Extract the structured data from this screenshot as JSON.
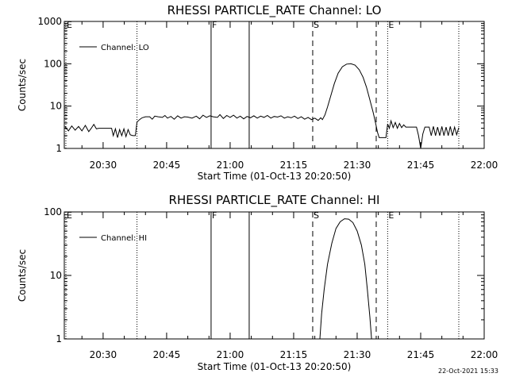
{
  "footer_timestamp": "22-Oct-2021 15:33",
  "chart_data": [
    {
      "type": "line",
      "title": "RHESSI PARTICLE_RATE Channel: LO",
      "xlabel": "Start Time (01-Oct-13 20:20:50)",
      "ylabel": "Counts/sec",
      "x_units": "minutes after 20:00 UT",
      "xlim": [
        20.83,
        120
      ],
      "ylim": [
        1,
        1000
      ],
      "yscale": "log",
      "x_ticks": [
        {
          "label": "20:30",
          "value": 30
        },
        {
          "label": "20:45",
          "value": 45
        },
        {
          "label": "21:00",
          "value": 60
        },
        {
          "label": "21:15",
          "value": 75
        },
        {
          "label": "21:30",
          "value": 90
        },
        {
          "label": "21:45",
          "value": 105
        },
        {
          "label": "22:00",
          "value": 120
        }
      ],
      "y_ticks": [
        {
          "label": "1",
          "value": 1
        },
        {
          "label": "10",
          "value": 10
        },
        {
          "label": "100",
          "value": 100
        },
        {
          "label": "1000",
          "value": 1000
        }
      ],
      "legend": {
        "label": "Channel: LO",
        "position": "top-left"
      },
      "markers": [
        {
          "label": "E",
          "x": 21.2,
          "style": "dotted"
        },
        {
          "label": "",
          "x": 38.0,
          "style": "dotted"
        },
        {
          "label": "F",
          "x": 55.5,
          "style": "solid"
        },
        {
          "label": "",
          "x": 64.5,
          "style": "solid"
        },
        {
          "label": "S",
          "x": 79.5,
          "style": "dashed"
        },
        {
          "label": "",
          "x": 94.5,
          "style": "dashed"
        },
        {
          "label": "E",
          "x": 97.2,
          "style": "dotted"
        },
        {
          "label": "",
          "x": 114.0,
          "style": "dotted"
        }
      ],
      "series": [
        {
          "segments": [
            [
              [
                21.0,
                3.3
              ],
              [
                21.8,
                2.6
              ],
              [
                22.6,
                3.4
              ],
              [
                23.4,
                2.7
              ],
              [
                24.2,
                3.3
              ],
              [
                25.0,
                2.6
              ],
              [
                25.8,
                3.5
              ],
              [
                26.6,
                2.5
              ],
              [
                27.2,
                3.0
              ],
              [
                27.8,
                3.7
              ],
              [
                28.4,
                2.9
              ],
              [
                29.0,
                3.0
              ],
              [
                30,
                3.0
              ],
              [
                31,
                3.0
              ],
              [
                32,
                3.0
              ],
              [
                32.4,
                2.0
              ],
              [
                32.9,
                2.9
              ],
              [
                33.4,
                1.8
              ],
              [
                33.9,
                2.8
              ],
              [
                34.4,
                2.0
              ],
              [
                34.9,
                2.9
              ],
              [
                35.4,
                1.9
              ],
              [
                35.9,
                2.8
              ],
              [
                36.4,
                2.1
              ],
              [
                37.0,
                2.0
              ],
              [
                37.6,
                2.0
              ],
              [
                38.0,
                4.2
              ],
              [
                38.6,
                4.8
              ],
              [
                39.2,
                5.3
              ],
              [
                40,
                5.6
              ],
              [
                41,
                5.6
              ],
              [
                41.6,
                4.9
              ],
              [
                42.2,
                5.8
              ],
              [
                43,
                5.6
              ],
              [
                44,
                5.4
              ],
              [
                44.6,
                6.0
              ],
              [
                45.2,
                5.2
              ],
              [
                46,
                5.7
              ],
              [
                46.8,
                4.9
              ],
              [
                47.6,
                5.9
              ],
              [
                48.4,
                5.2
              ],
              [
                49.2,
                5.6
              ],
              [
                50,
                5.5
              ],
              [
                51,
                5.2
              ],
              [
                52,
                5.8
              ],
              [
                52.8,
                5.0
              ],
              [
                53.6,
                6.1
              ],
              [
                54.4,
                5.4
              ],
              [
                55.2,
                5.9
              ],
              [
                56,
                5.6
              ],
              [
                57,
                5.4
              ],
              [
                57.6,
                6.3
              ],
              [
                58.4,
                5.1
              ],
              [
                59.2,
                6.0
              ],
              [
                60,
                5.4
              ],
              [
                60.8,
                6.1
              ],
              [
                61.6,
                5.2
              ],
              [
                62.4,
                5.8
              ],
              [
                63.2,
                5.0
              ],
              [
                64,
                5.7
              ],
              [
                64.8,
                5.3
              ],
              [
                65.6,
                5.9
              ],
              [
                66.4,
                5.2
              ],
              [
                67.2,
                5.8
              ],
              [
                68,
                5.4
              ],
              [
                68.8,
                6.0
              ],
              [
                69.6,
                5.2
              ],
              [
                70.4,
                5.7
              ],
              [
                71.2,
                5.5
              ],
              [
                72,
                5.9
              ],
              [
                72.8,
                5.2
              ],
              [
                73.6,
                5.6
              ],
              [
                74.4,
                5.3
              ],
              [
                75.2,
                5.8
              ],
              [
                76,
                5.1
              ],
              [
                76.8,
                5.6
              ],
              [
                77.6,
                4.9
              ],
              [
                78.4,
                5.4
              ],
              [
                79.2,
                4.8
              ],
              [
                80,
                5.2
              ],
              [
                80.8,
                4.6
              ],
              [
                81.4,
                5.3
              ],
              [
                81.8,
                4.8
              ],
              [
                82.4,
                6.2
              ],
              [
                83,
                9.5
              ],
              [
                83.8,
                18
              ],
              [
                84.6,
                34
              ],
              [
                85.5,
                60
              ],
              [
                86.5,
                85
              ],
              [
                87.5,
                98
              ],
              [
                88.5,
                100
              ],
              [
                89.5,
                93
              ],
              [
                90.5,
                72
              ],
              [
                91.4,
                48
              ],
              [
                92.2,
                28
              ],
              [
                93.0,
                14
              ],
              [
                93.8,
                7
              ],
              [
                94.4,
                3.8
              ],
              [
                94.8,
                2.4
              ],
              [
                95.2,
                1.8
              ],
              [
                96,
                1.8
              ],
              [
                96.8,
                1.8
              ],
              [
                97.2,
                3.8
              ],
              [
                97.6,
                3.0
              ],
              [
                98.0,
                4.5
              ],
              [
                98.5,
                3.1
              ],
              [
                99.0,
                4.1
              ],
              [
                99.5,
                3.0
              ],
              [
                100.0,
                3.9
              ],
              [
                100.5,
                3.1
              ],
              [
                101.0,
                3.6
              ],
              [
                101.5,
                3.2
              ],
              [
                102,
                3.2
              ],
              [
                103,
                3.2
              ],
              [
                104,
                3.2
              ],
              [
                104.5,
                2.0
              ],
              [
                105.0,
                1.0
              ],
              [
                105.5,
                2.2
              ],
              [
                106.0,
                3.2
              ],
              [
                107,
                3.2
              ],
              [
                107.5,
                2.0
              ],
              [
                108.0,
                3.3
              ],
              [
                108.5,
                2.0
              ],
              [
                109.0,
                3.2
              ],
              [
                109.5,
                2.0
              ],
              [
                110.0,
                3.3
              ],
              [
                110.5,
                2.0
              ],
              [
                111.0,
                3.2
              ],
              [
                111.5,
                2.0
              ],
              [
                112.0,
                3.3
              ],
              [
                112.5,
                2.0
              ],
              [
                113.0,
                3.2
              ],
              [
                113.5,
                2.1
              ],
              [
                114.0,
                3.1
              ]
            ]
          ]
        }
      ]
    },
    {
      "type": "line",
      "title": "RHESSI PARTICLE_RATE Channel: HI",
      "xlabel": "Start Time (01-Oct-13 20:20:50)",
      "ylabel": "Counts/sec",
      "x_units": "minutes after 20:00 UT",
      "xlim": [
        20.83,
        120
      ],
      "ylim": [
        1,
        100
      ],
      "yscale": "log",
      "x_ticks": [
        {
          "label": "20:30",
          "value": 30
        },
        {
          "label": "20:45",
          "value": 45
        },
        {
          "label": "21:00",
          "value": 60
        },
        {
          "label": "21:15",
          "value": 75
        },
        {
          "label": "21:30",
          "value": 90
        },
        {
          "label": "21:45",
          "value": 105
        },
        {
          "label": "22:00",
          "value": 120
        }
      ],
      "y_ticks": [
        {
          "label": "1",
          "value": 1
        },
        {
          "label": "10",
          "value": 10
        },
        {
          "label": "100",
          "value": 100
        }
      ],
      "legend": {
        "label": "Channel: HI",
        "position": "top-left"
      },
      "markers": [
        {
          "label": "E",
          "x": 21.2,
          "style": "dotted"
        },
        {
          "label": "",
          "x": 38.0,
          "style": "dotted"
        },
        {
          "label": "F",
          "x": 55.5,
          "style": "solid"
        },
        {
          "label": "",
          "x": 64.5,
          "style": "solid"
        },
        {
          "label": "S",
          "x": 79.5,
          "style": "dashed"
        },
        {
          "label": "",
          "x": 94.5,
          "style": "dashed"
        },
        {
          "label": "E",
          "x": 97.2,
          "style": "dotted"
        },
        {
          "label": "",
          "x": 114.0,
          "style": "dotted"
        }
      ],
      "series": [
        {
          "segments": [
            [
              [
                81.2,
                1.0
              ],
              [
                81.6,
                2.5
              ],
              [
                82.2,
                6
              ],
              [
                83,
                15
              ],
              [
                84,
                32
              ],
              [
                85,
                55
              ],
              [
                86,
                70
              ],
              [
                87,
                78
              ],
              [
                88,
                77
              ],
              [
                89,
                68
              ],
              [
                90,
                50
              ],
              [
                91,
                30
              ],
              [
                91.8,
                15
              ],
              [
                92.4,
                6
              ],
              [
                93.0,
                2.2
              ],
              [
                93.4,
                1.0
              ]
            ]
          ]
        }
      ]
    }
  ]
}
